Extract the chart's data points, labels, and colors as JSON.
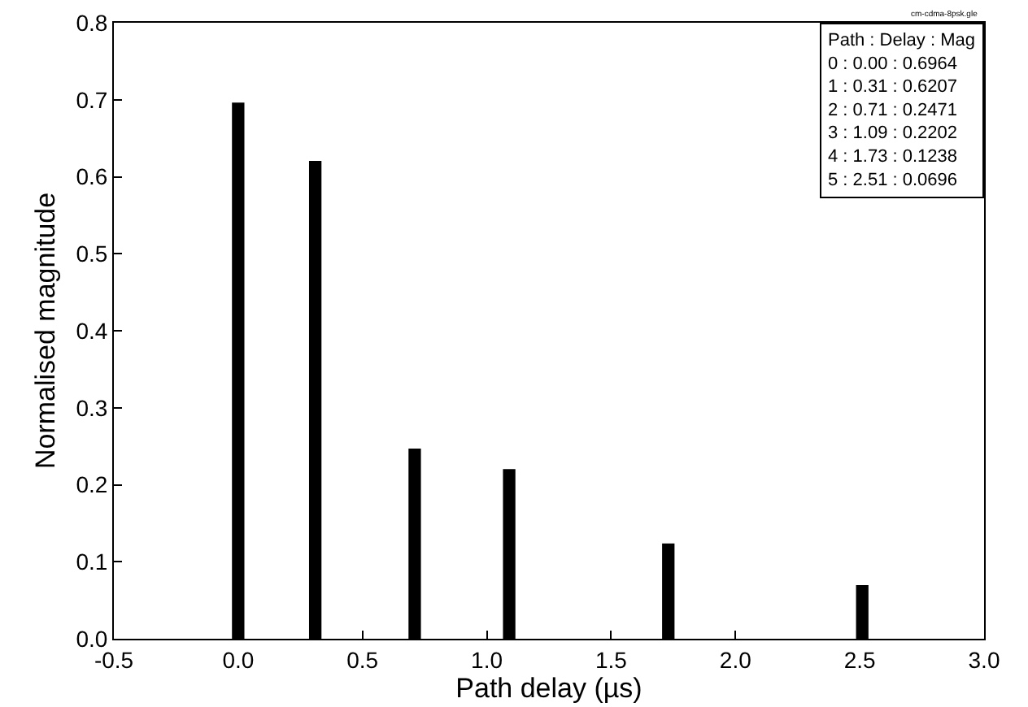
{
  "chart_data": {
    "type": "bar",
    "xlabel": "Path delay (µs)",
    "ylabel": "Normalised magnitude",
    "x": [
      0.0,
      0.31,
      0.71,
      1.09,
      1.73,
      2.51
    ],
    "values": [
      0.6964,
      0.6207,
      0.2471,
      0.2202,
      0.1238,
      0.0696
    ],
    "color": "#000000",
    "xlim": [
      -0.5,
      3.0
    ],
    "xticks": [
      {
        "value": -0.5,
        "label": "-0.5"
      },
      {
        "value": 0,
        "label": "0.0"
      },
      0.5,
      {
        "value": 1,
        "label": "1.0"
      },
      1.5,
      {
        "value": 2,
        "label": "2.0"
      },
      2.5,
      {
        "value": 3,
        "label": "3.0"
      }
    ],
    "ylim": [
      0,
      0.8
    ],
    "yticks": [
      {
        "value": 0,
        "label": "0.0"
      },
      0.1,
      0.2,
      0.3,
      0.4,
      0.5,
      0.6,
      0.7,
      0.8
    ],
    "grid": false,
    "annotations": [
      "cm-cdma-8psk.gle",
      "Path : Delay : Mag",
      "0 : 0.00 : 0.6964",
      "1 : 0.31 : 0.6207",
      "2 : 0.71 : 0.2471",
      "3 : 1.09 : 0.2202",
      "4 : 1.73 : 0.1238",
      "5 : 2.51 : 0.0696"
    ]
  }
}
